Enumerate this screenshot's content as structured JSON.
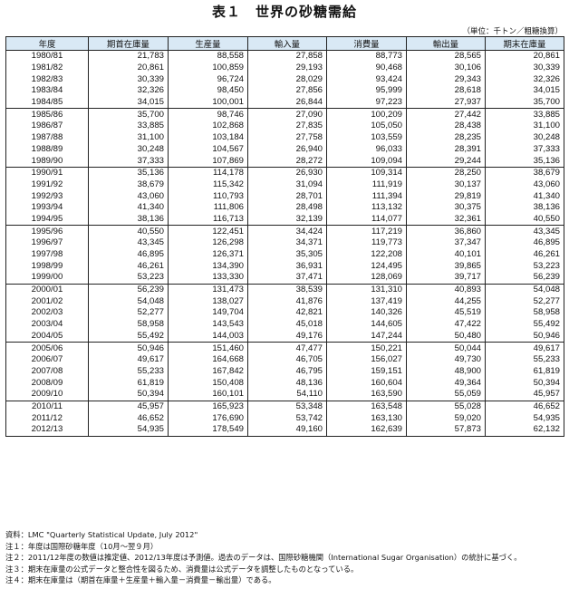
{
  "title": "表１　世界の砂糖需給",
  "unit_note": "（単位：千トン／粗糖換算）",
  "columns": [
    "年度",
    "期首在庫量",
    "生産量",
    "輸入量",
    "消費量",
    "輸出量",
    "期末在庫量"
  ],
  "rows": [
    [
      "1980/81",
      "21,783",
      "88,558",
      "27,858",
      "88,773",
      "28,565",
      "20,861"
    ],
    [
      "1981/82",
      "20,861",
      "100,859",
      "29,193",
      "90,468",
      "30,106",
      "30,339"
    ],
    [
      "1982/83",
      "30,339",
      "96,724",
      "28,029",
      "93,424",
      "29,343",
      "32,326"
    ],
    [
      "1983/84",
      "32,326",
      "98,450",
      "27,856",
      "95,999",
      "28,618",
      "34,015"
    ],
    [
      "1984/85",
      "34,015",
      "100,001",
      "26,844",
      "97,223",
      "27,937",
      "35,700"
    ],
    [
      "1985/86",
      "35,700",
      "98,746",
      "27,090",
      "100,209",
      "27,442",
      "33,885"
    ],
    [
      "1986/87",
      "33,885",
      "102,868",
      "27,835",
      "105,050",
      "28,438",
      "31,100"
    ],
    [
      "1987/88",
      "31,100",
      "103,184",
      "27,758",
      "103,559",
      "28,235",
      "30,248"
    ],
    [
      "1988/89",
      "30,248",
      "104,567",
      "26,940",
      "96,033",
      "28,391",
      "37,333"
    ],
    [
      "1989/90",
      "37,333",
      "107,869",
      "28,272",
      "109,094",
      "29,244",
      "35,136"
    ],
    [
      "1990/91",
      "35,136",
      "114,178",
      "26,930",
      "109,314",
      "28,250",
      "38,679"
    ],
    [
      "1991/92",
      "38,679",
      "115,342",
      "31,094",
      "111,919",
      "30,137",
      "43,060"
    ],
    [
      "1992/93",
      "43,060",
      "110,793",
      "28,701",
      "111,394",
      "29,819",
      "41,340"
    ],
    [
      "1993/94",
      "41,340",
      "111,806",
      "28,498",
      "113,132",
      "30,375",
      "38,136"
    ],
    [
      "1994/95",
      "38,136",
      "116,713",
      "32,139",
      "114,077",
      "32,361",
      "40,550"
    ],
    [
      "1995/96",
      "40,550",
      "122,451",
      "34,424",
      "117,219",
      "36,860",
      "43,345"
    ],
    [
      "1996/97",
      "43,345",
      "126,298",
      "34,371",
      "119,773",
      "37,347",
      "46,895"
    ],
    [
      "1997/98",
      "46,895",
      "126,371",
      "35,305",
      "122,208",
      "40,101",
      "46,261"
    ],
    [
      "1998/99",
      "46,261",
      "134,390",
      "36,931",
      "124,495",
      "39,865",
      "53,223"
    ],
    [
      "1999/00",
      "53,223",
      "133,330",
      "37,471",
      "128,069",
      "39,717",
      "56,239"
    ],
    [
      "2000/01",
      "56,239",
      "131,473",
      "38,539",
      "131,310",
      "40,893",
      "54,048"
    ],
    [
      "2001/02",
      "54,048",
      "138,027",
      "41,876",
      "137,419",
      "44,255",
      "52,277"
    ],
    [
      "2002/03",
      "52,277",
      "149,704",
      "42,821",
      "140,326",
      "45,519",
      "58,958"
    ],
    [
      "2003/04",
      "58,958",
      "143,543",
      "45,018",
      "144,605",
      "47,422",
      "55,492"
    ],
    [
      "2004/05",
      "55,492",
      "144,003",
      "49,176",
      "147,244",
      "50,480",
      "50,946"
    ],
    [
      "2005/06",
      "50,946",
      "151,460",
      "47,477",
      "150,221",
      "50,044",
      "49,617"
    ],
    [
      "2006/07",
      "49,617",
      "164,668",
      "46,705",
      "156,027",
      "49,730",
      "55,233"
    ],
    [
      "2007/08",
      "55,233",
      "167,842",
      "46,795",
      "159,151",
      "48,900",
      "61,819"
    ],
    [
      "2008/09",
      "61,819",
      "150,408",
      "48,136",
      "160,604",
      "49,364",
      "50,394"
    ],
    [
      "2009/10",
      "50,394",
      "160,101",
      "54,110",
      "163,590",
      "55,059",
      "45,957"
    ],
    [
      "2010/11",
      "45,957",
      "165,923",
      "53,348",
      "163,548",
      "55,028",
      "46,652"
    ],
    [
      "2011/12",
      "46,652",
      "176,690",
      "53,742",
      "163,130",
      "59,020",
      "54,935"
    ],
    [
      "2012/13",
      "54,935",
      "178,549",
      "49,160",
      "162,639",
      "57,873",
      "62,132"
    ]
  ],
  "notes": [
    "資料：LMC \"Quarterly Statistical Update, July 2012\"",
    "注１：年度は国際砂糖年度（10月～翌９月）",
    "注２：2011/12年度の数値は推定値、2012/13年度は予測値。過去のデータは、国際砂糖機関（International Sugar Organisation）の統計に基づく。",
    "注３：期末在庫量の公式データと整合性を図るため、消費量は公式データを調整したものとなっている。",
    "注４：期末在庫量は（期首在庫量＋生産量＋輸入量－消費量－輸出量）である。"
  ],
  "colors": {
    "header_bg": "#d9e9f5",
    "border": "#222222"
  }
}
